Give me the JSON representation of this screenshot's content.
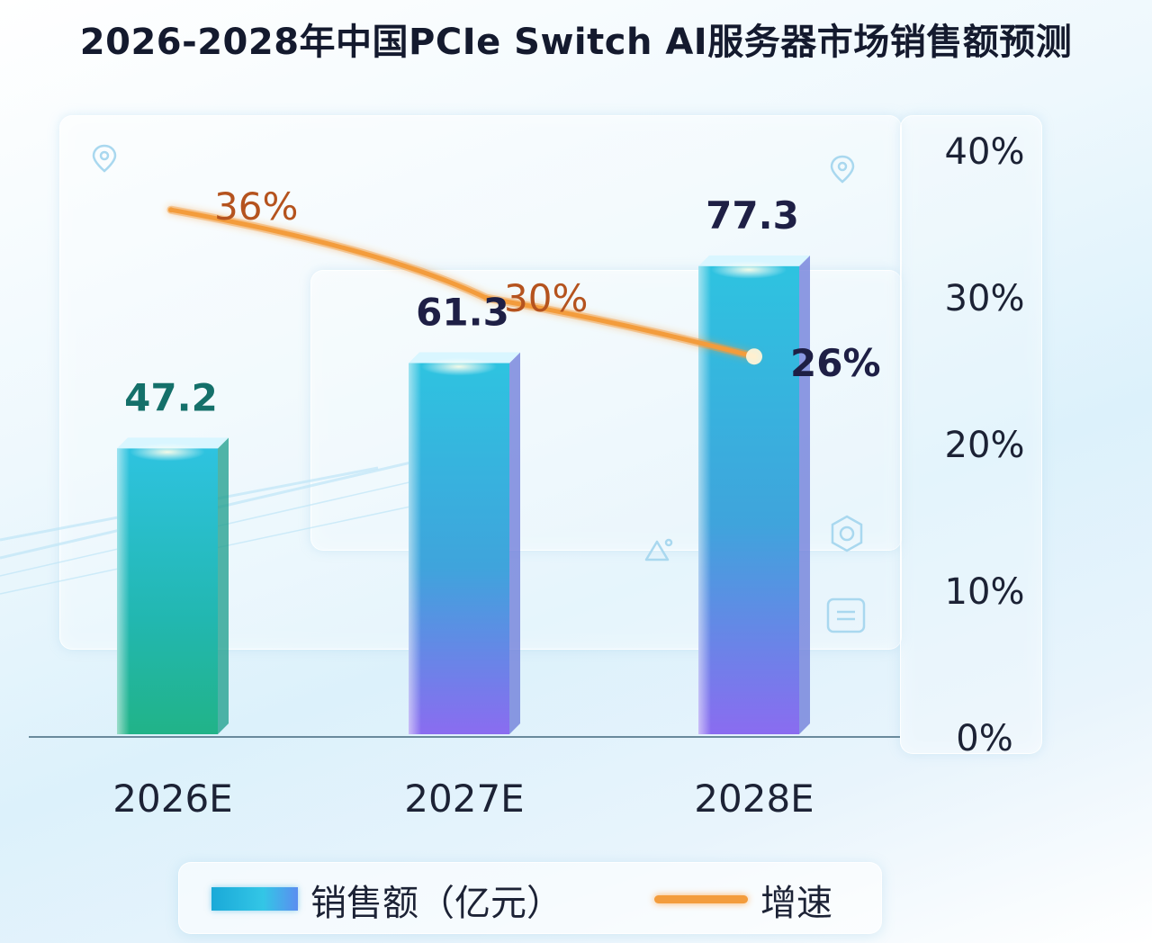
{
  "title": "2026-2028年中国PCIe Switch AI服务器市场销售额预测",
  "legend": {
    "bar_label": "销售额（亿元）",
    "line_label": "增速"
  },
  "colors": {
    "bar_top": "#2ec3e0",
    "bar_mid": "#2aa8d8",
    "bar_bottom_violet": "#8a6cf0",
    "bar_bottom_green": "#22b58a",
    "line": "#f39c3c",
    "label_2026": "#14706a",
    "label_other": "#1e1f45",
    "line_label": "#b5531e"
  },
  "decorative_icons": [
    "location-pin-icon",
    "location-pin-icon",
    "triangle-shapes-icon",
    "hexagon-icon",
    "document-icon"
  ],
  "chart_data": {
    "type": "bar",
    "categories": [
      "2026E",
      "2027E",
      "2028E"
    ],
    "series": [
      {
        "name": "销售额（亿元）",
        "type": "bar",
        "axis": "left",
        "values": [
          47.2,
          61.3,
          77.3
        ]
      },
      {
        "name": "增速",
        "type": "line",
        "axis": "right",
        "values": [
          36,
          30,
          26
        ],
        "labels": [
          "36%",
          "30%",
          "26%"
        ]
      }
    ],
    "bar_value_labels": [
      "47.2",
      "61.3",
      "77.3"
    ],
    "y2_ticks": [
      "0%",
      "10%",
      "20%",
      "30%",
      "40%"
    ],
    "y2lim": [
      0,
      40
    ],
    "ylim": [
      0,
      96
    ],
    "grid": false,
    "legend_position": "bottom"
  }
}
